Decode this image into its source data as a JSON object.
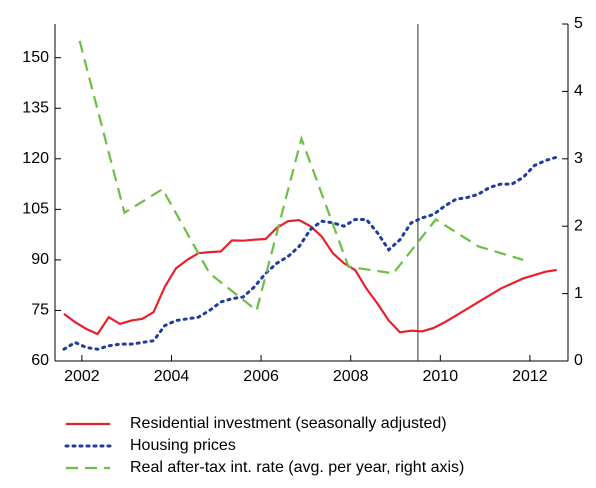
{
  "chart_data": {
    "type": "line",
    "xlim": [
      2001.4,
      2012.85
    ],
    "xticks": [
      2002,
      2004,
      2006,
      2008,
      2010,
      2012
    ],
    "ylim": [
      60,
      160
    ],
    "yticks": [
      60,
      75,
      90,
      105,
      120,
      135,
      150
    ],
    "y2lim": [
      0,
      5
    ],
    "y2ticks": [
      0,
      1,
      2,
      3,
      4,
      5
    ],
    "vline": 2009.5,
    "series": [
      {
        "name": "Residential investment (seasonally adjusted)",
        "color": "#e8202a",
        "style": "solid",
        "x": [
          2001.6,
          2001.85,
          2002.1,
          2002.35,
          2002.6,
          2002.85,
          2003.1,
          2003.35,
          2003.6,
          2003.85,
          2004.1,
          2004.35,
          2004.6,
          2004.85,
          2005.1,
          2005.35,
          2005.6,
          2005.85,
          2006.1,
          2006.35,
          2006.6,
          2006.85,
          2007.1,
          2007.35,
          2007.6,
          2007.85,
          2008.1,
          2008.35,
          2008.6,
          2008.85,
          2009.1,
          2009.35,
          2009.6,
          2009.85,
          2010.1,
          2010.35,
          2010.6,
          2010.85,
          2011.1,
          2011.35,
          2011.6,
          2011.85,
          2012.1,
          2012.35,
          2012.6
        ],
        "values": [
          74,
          71.5,
          69.5,
          68,
          73,
          71,
          72,
          72.5,
          74.5,
          82,
          87.5,
          90,
          92,
          92.3,
          92.5,
          95.8,
          95.7,
          96,
          96.2,
          99.5,
          101.5,
          101.8,
          100,
          97,
          92,
          89,
          87,
          81.5,
          77,
          72,
          68.5,
          69,
          68.8,
          69.8,
          71.5,
          73.5,
          75.5,
          77.5,
          79.5,
          81.5,
          83,
          84.5,
          85.5,
          86.5,
          87
        ]
      },
      {
        "name": "Housing prices",
        "color": "#1f3c9e",
        "style": "dotted",
        "x": [
          2001.6,
          2001.85,
          2002.1,
          2002.35,
          2002.6,
          2002.85,
          2003.1,
          2003.35,
          2003.6,
          2003.85,
          2004.1,
          2004.35,
          2004.6,
          2004.85,
          2005.1,
          2005.35,
          2005.6,
          2005.85,
          2006.1,
          2006.35,
          2006.6,
          2006.85,
          2007.1,
          2007.35,
          2007.6,
          2007.85,
          2008.1,
          2008.35,
          2008.6,
          2008.85,
          2009.1,
          2009.35,
          2009.6,
          2009.85,
          2010.1,
          2010.35,
          2010.6,
          2010.85,
          2011.1,
          2011.35,
          2011.6,
          2011.85,
          2012.1,
          2012.35,
          2012.6
        ],
        "values": [
          63.5,
          65.5,
          64,
          63.5,
          64.5,
          65,
          65,
          65.5,
          66,
          70.5,
          72,
          72.5,
          73,
          75,
          77.5,
          78.5,
          79,
          82,
          86,
          89,
          91,
          94,
          99,
          101.5,
          101,
          100,
          102,
          102,
          98,
          93,
          96,
          101,
          102.5,
          103.5,
          106,
          108,
          108.5,
          109.5,
          111.5,
          112.5,
          112.5,
          114.5,
          118,
          119.5,
          120.5
        ]
      },
      {
        "name": "Real after-tax int. rate (avg. per year, right axis)",
        "color": "#6dbe45",
        "style": "dashed",
        "axis": "y2",
        "x": [
          2001.95,
          2002.95,
          2003.8,
          2004.85,
          2005.9,
          2006.9,
          2007.95,
          2008.95,
          2009.9,
          2010.85,
          2011.85
        ],
        "values": [
          4.75,
          2.2,
          2.55,
          1.3,
          0.75,
          3.3,
          1.4,
          1.3,
          2.1,
          1.7,
          1.5
        ]
      }
    ]
  }
}
